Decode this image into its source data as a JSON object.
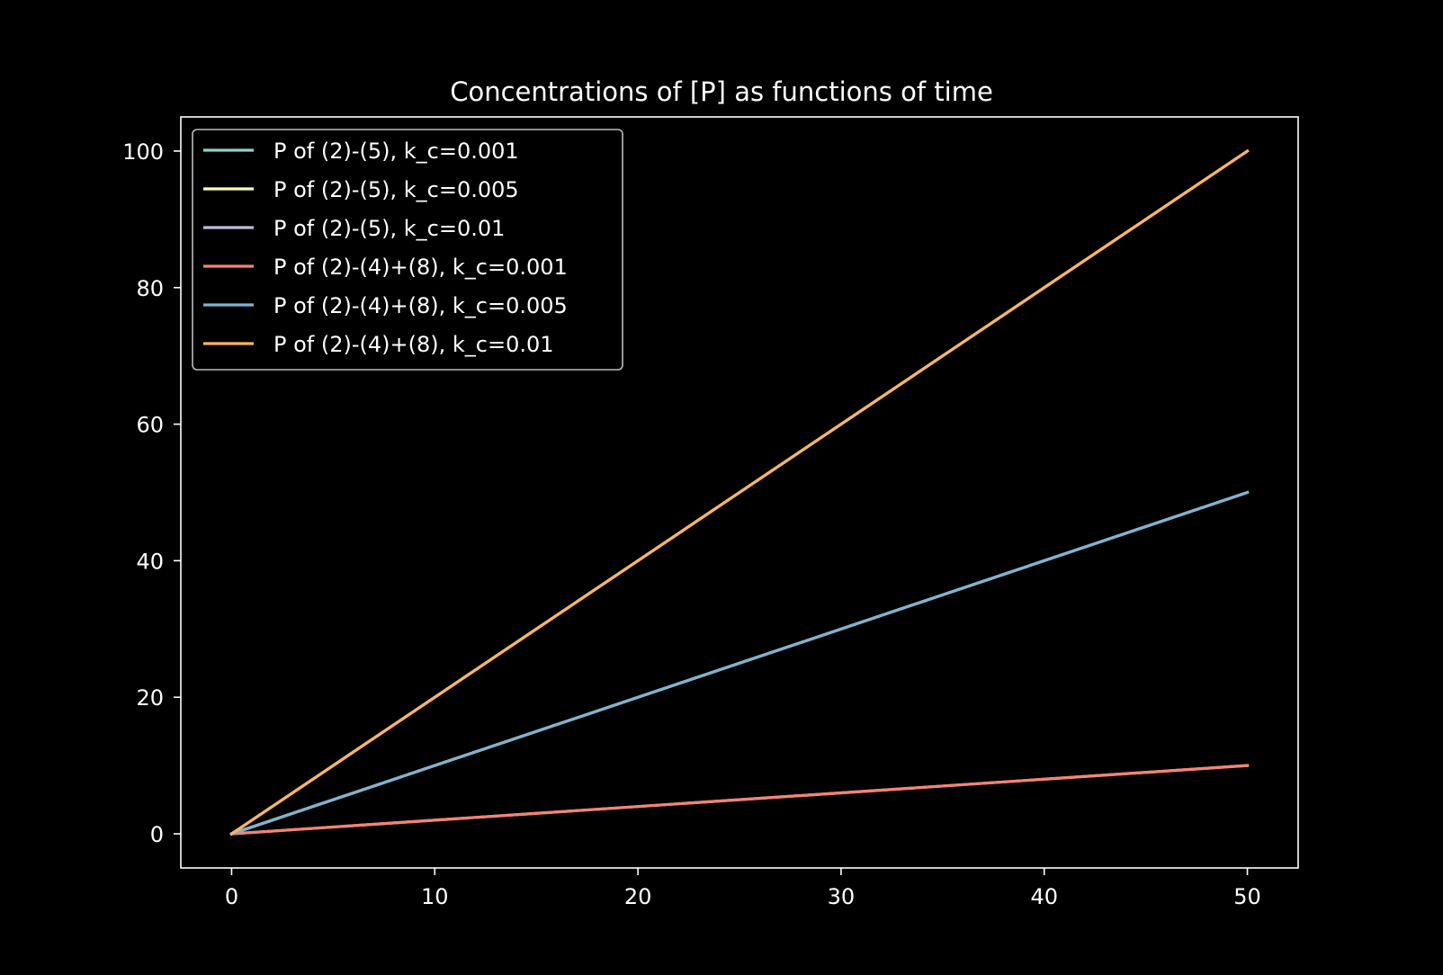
{
  "chart_data": {
    "type": "line",
    "title": "Concentrations of [P] as functions of time",
    "xlabel": "",
    "ylabel": "",
    "xlim": [
      -2.5,
      52.5
    ],
    "ylim": [
      -5,
      105
    ],
    "xticks": [
      0,
      10,
      20,
      30,
      40,
      50
    ],
    "yticks": [
      0,
      20,
      40,
      60,
      80,
      100
    ],
    "grid": false,
    "legend_position": "top-left",
    "x": [
      0,
      50
    ],
    "series": [
      {
        "name": "P of (2)-(5), k_c=0.001",
        "color": "#8dd3c7",
        "values": [
          0,
          10
        ]
      },
      {
        "name": "P of (2)-(5), k_c=0.005",
        "color": "#feffb3",
        "values": [
          0,
          50
        ]
      },
      {
        "name": "P of (2)-(5), k_c=0.01",
        "color": "#bfbbd9",
        "values": [
          0,
          100
        ]
      },
      {
        "name": "P of (2)-(4)+(8), k_c=0.001",
        "color": "#fa8174",
        "values": [
          0,
          10
        ]
      },
      {
        "name": "P of (2)-(4)+(8), k_c=0.005",
        "color": "#81b1d2",
        "values": [
          0,
          50
        ]
      },
      {
        "name": "P of (2)-(4)+(8), k_c=0.01",
        "color": "#fdb462",
        "values": [
          0,
          100
        ]
      }
    ],
    "colors": {
      "background": "#000000",
      "foreground": "#ffffff",
      "legend_border": "#bbbbbb"
    }
  }
}
